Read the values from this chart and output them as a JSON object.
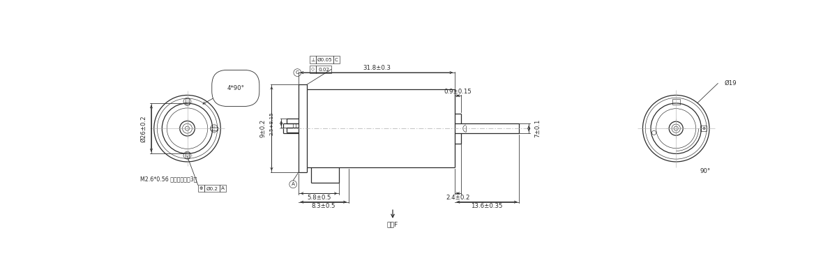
{
  "bg_color": "#ffffff",
  "line_color": "#2a2a2a",
  "dim_color": "#2a2a2a",
  "lw_main": 0.9,
  "lw_dim": 0.55,
  "lw_thin": 0.45,
  "font_size": 6.2,
  "annotations": {
    "dim_318": "31.8±0.3",
    "dim_09": "0.9±0.15",
    "dim_7": "7±0.1",
    "dim_58": "5.8±0.5",
    "dim_83": "8.3±0.5",
    "dim_24": "2.4±0.2",
    "dim_136": "13.6±0.35",
    "dim_9": "9±0.2",
    "dim_25": "2.5+8.15",
    "dim_26": "Ø26±0.2",
    "dim_19": "Ø19",
    "dim_90": "4*90°",
    "dim_90r": "90°",
    "dim_m26": "M2.6*0.56 有效牙数大于3圈",
    "tol_perp_val": "Ø0.05",
    "tol_flat_val": "0.02",
    "tol_pos_val": "Ø0.2",
    "label_A": "A",
    "label_C": "C",
    "label_F": "方向F"
  }
}
